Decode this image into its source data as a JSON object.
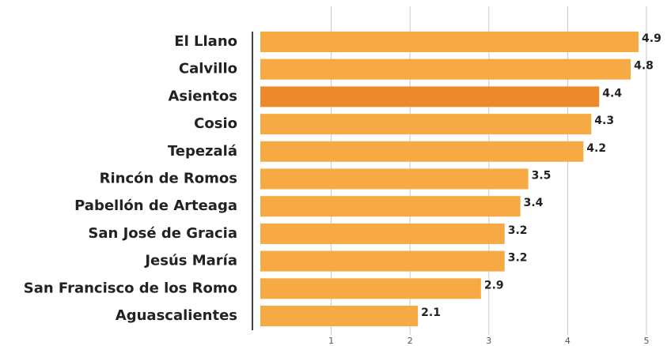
{
  "chart_data": {
    "type": "hbar",
    "categories": [
      "El Llano",
      "Calvillo",
      "Asientos",
      "Cosio",
      "Tepezalá",
      "Rincón de Romos",
      "Pabellón de Arteaga",
      "San José de Gracia",
      "Jesús María",
      "San Francisco de los Romo",
      "Aguascalientes"
    ],
    "values": [
      4.9,
      4.8,
      4.4,
      4.3,
      4.2,
      3.5,
      3.4,
      3.2,
      3.2,
      2.9,
      2.1
    ],
    "colors": [
      "#f7a944",
      "#f7a944",
      "#ef8a2c",
      "#f7a944",
      "#f7a944",
      "#f7a944",
      "#f7a944",
      "#f7a944",
      "#f7a944",
      "#f7a944",
      "#f7a944"
    ],
    "xlim": [
      0,
      5
    ],
    "xticks": [
      1,
      2,
      3,
      4,
      5
    ],
    "grid": true
  }
}
